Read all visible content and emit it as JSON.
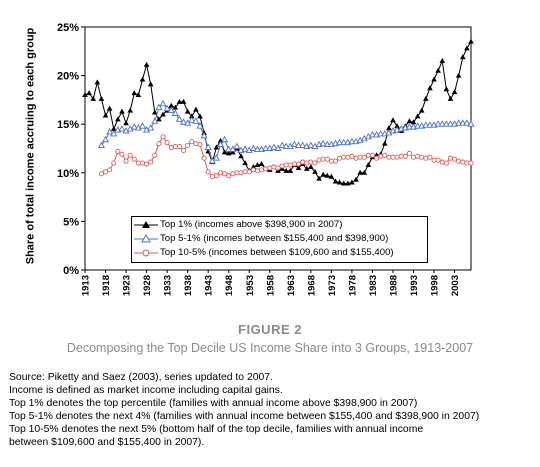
{
  "chart_data": {
    "type": "line",
    "ylabel": "Share of total income accruing to each group",
    "ylim": [
      0,
      25
    ],
    "yticks": [
      "0%",
      "5%",
      "10%",
      "15%",
      "20%",
      "25%"
    ],
    "xticks": [
      "1913",
      "1918",
      "1923",
      "1928",
      "1933",
      "1938",
      "1943",
      "1948",
      "1953",
      "1958",
      "1963",
      "1968",
      "1973",
      "1978",
      "1983",
      "1988",
      "1993",
      "1998",
      "2003"
    ],
    "xlim": [
      1913,
      2007
    ],
    "grid": "vertical dashed",
    "legend_position": "bottom-center",
    "series": [
      {
        "name": "Top 1% (incomes above $398,900 in 2007)",
        "color": "#000000",
        "marker": "filled-triangle",
        "x": [
          1913,
          1914,
          1915,
          1916,
          1917,
          1918,
          1919,
          1920,
          1921,
          1922,
          1923,
          1924,
          1925,
          1926,
          1927,
          1928,
          1929,
          1930,
          1931,
          1932,
          1933,
          1934,
          1935,
          1936,
          1937,
          1938,
          1939,
          1940,
          1941,
          1942,
          1943,
          1944,
          1945,
          1946,
          1947,
          1948,
          1949,
          1950,
          1951,
          1952,
          1953,
          1954,
          1955,
          1956,
          1957,
          1958,
          1959,
          1960,
          1961,
          1962,
          1963,
          1964,
          1965,
          1966,
          1967,
          1968,
          1969,
          1970,
          1971,
          1972,
          1973,
          1974,
          1975,
          1976,
          1977,
          1978,
          1979,
          1980,
          1981,
          1982,
          1983,
          1984,
          1985,
          1986,
          1987,
          1988,
          1989,
          1990,
          1991,
          1992,
          1993,
          1994,
          1995,
          1996,
          1997,
          1998,
          1999,
          2000,
          2001,
          2002,
          2003,
          2004,
          2005,
          2006,
          2007
        ],
        "values": [
          18.0,
          18.2,
          17.6,
          19.3,
          17.6,
          15.9,
          16.6,
          14.5,
          15.5,
          16.3,
          15.1,
          16.4,
          18.2,
          18.0,
          19.6,
          21.1,
          19.1,
          16.2,
          15.5,
          16.0,
          16.4,
          16.9,
          16.7,
          17.3,
          17.3,
          16.3,
          15.8,
          16.5,
          15.8,
          14.1,
          12.2,
          11.1,
          12.6,
          13.3,
          12.1,
          12.0,
          12.1,
          12.5,
          11.7,
          11.0,
          10.2,
          10.6,
          10.8,
          10.9,
          10.4,
          10.3,
          10.6,
          10.2,
          10.4,
          10.2,
          10.2,
          10.8,
          10.5,
          10.9,
          10.4,
          10.6,
          10.1,
          9.4,
          9.8,
          9.7,
          9.6,
          9.1,
          9.0,
          8.9,
          8.9,
          9.0,
          9.3,
          10.0,
          10.0,
          10.8,
          11.6,
          11.8,
          11.9,
          13.0,
          14.6,
          15.4,
          14.8,
          14.3,
          14.8,
          15.3,
          15.2,
          15.8,
          16.4,
          17.6,
          18.7,
          19.6,
          20.5,
          21.5,
          18.6,
          17.6,
          18.3,
          20.0,
          21.9,
          22.8,
          23.5
        ]
      },
      {
        "name": "Top 5-1% (incomes between $155,400 and $398,900)",
        "color": "#4f6fcf",
        "marker": "open-triangle",
        "x": [
          1913,
          1914,
          1915,
          1916,
          1917,
          1918,
          1919,
          1920,
          1921,
          1922,
          1923,
          1924,
          1925,
          1926,
          1927,
          1928,
          1929,
          1930,
          1931,
          1932,
          1933,
          1934,
          1935,
          1936,
          1937,
          1938,
          1939,
          1940,
          1941,
          1942,
          1943,
          1944,
          1945,
          1946,
          1947,
          1948,
          1949,
          1950,
          1951,
          1952,
          1953,
          1954,
          1955,
          1956,
          1957,
          1958,
          1959,
          1960,
          1961,
          1962,
          1963,
          1964,
          1965,
          1966,
          1967,
          1968,
          1969,
          1970,
          1971,
          1972,
          1973,
          1974,
          1975,
          1976,
          1977,
          1978,
          1979,
          1980,
          1981,
          1982,
          1983,
          1984,
          1985,
          1986,
          1987,
          1988,
          1989,
          1990,
          1991,
          1992,
          1993,
          1994,
          1995,
          1996,
          1997,
          1998,
          1999,
          2000,
          2001,
          2002,
          2003,
          2004,
          2005,
          2006,
          2007
        ],
        "values": [
          null,
          null,
          null,
          null,
          12.8,
          13.4,
          14.2,
          14.0,
          14.4,
          14.5,
          14.3,
          14.5,
          14.7,
          14.6,
          14.8,
          14.4,
          14.6,
          15.3,
          16.7,
          17.1,
          16.6,
          16.4,
          16.1,
          15.5,
          15.2,
          15.1,
          15.4,
          15.3,
          14.8,
          13.8,
          12.6,
          11.2,
          11.5,
          12.9,
          13.4,
          12.4,
          12.4,
          12.7,
          12.3,
          12.4,
          12.3,
          12.5,
          12.4,
          12.4,
          12.5,
          12.5,
          12.6,
          12.5,
          12.8,
          12.7,
          12.7,
          12.9,
          12.8,
          12.8,
          12.7,
          12.8,
          12.7,
          12.9,
          13.0,
          12.9,
          12.9,
          13.0,
          13.1,
          13.1,
          13.1,
          13.2,
          13.2,
          13.3,
          13.5,
          13.7,
          13.9,
          13.9,
          14.0,
          14.0,
          14.1,
          14.3,
          14.4,
          14.5,
          14.6,
          14.7,
          14.7,
          14.8,
          14.8,
          14.9,
          14.9,
          14.9,
          15.0,
          15.0,
          15.0,
          15.0,
          15.0,
          15.1,
          15.1,
          15.1,
          15.0
        ]
      },
      {
        "name": "Top 10-5% (incomes between $109,600 and $155,400)",
        "color": "#e05a5a",
        "marker": "open-circle",
        "x": [
          1913,
          1914,
          1915,
          1916,
          1917,
          1918,
          1919,
          1920,
          1921,
          1922,
          1923,
          1924,
          1925,
          1926,
          1927,
          1928,
          1929,
          1930,
          1931,
          1932,
          1933,
          1934,
          1935,
          1936,
          1937,
          1938,
          1939,
          1940,
          1941,
          1942,
          1943,
          1944,
          1945,
          1946,
          1947,
          1948,
          1949,
          1950,
          1951,
          1952,
          1953,
          1954,
          1955,
          1956,
          1957,
          1958,
          1959,
          1960,
          1961,
          1962,
          1963,
          1964,
          1965,
          1966,
          1967,
          1968,
          1969,
          1970,
          1971,
          1972,
          1973,
          1974,
          1975,
          1976,
          1977,
          1978,
          1979,
          1980,
          1981,
          1982,
          1983,
          1984,
          1985,
          1986,
          1987,
          1988,
          1989,
          1990,
          1991,
          1992,
          1993,
          1994,
          1995,
          1996,
          1997,
          1998,
          1999,
          2000,
          2001,
          2002,
          2003,
          2004,
          2005,
          2006,
          2007
        ],
        "values": [
          null,
          null,
          null,
          null,
          9.9,
          10.1,
          10.3,
          11.0,
          12.2,
          11.9,
          11.2,
          11.8,
          11.4,
          11.0,
          11.0,
          10.9,
          11.1,
          11.8,
          13.0,
          13.7,
          13.1,
          12.6,
          12.7,
          12.7,
          12.3,
          12.8,
          13.2,
          13.0,
          12.9,
          11.5,
          10.1,
          9.6,
          9.7,
          10.0,
          9.9,
          9.7,
          9.9,
          10.0,
          10.0,
          10.1,
          10.1,
          10.3,
          10.2,
          10.3,
          10.4,
          10.5,
          10.6,
          10.5,
          10.7,
          10.8,
          10.8,
          10.9,
          10.9,
          11.1,
          11.0,
          11.1,
          11.0,
          11.3,
          11.4,
          11.4,
          11.2,
          11.2,
          11.5,
          11.6,
          11.6,
          11.7,
          11.5,
          11.6,
          11.6,
          11.8,
          11.8,
          11.5,
          11.7,
          11.8,
          11.6,
          11.6,
          11.6,
          11.7,
          11.7,
          12.0,
          11.6,
          11.7,
          11.6,
          11.5,
          11.6,
          11.3,
          11.3,
          11.1,
          11.0,
          11.5,
          11.4,
          11.2,
          11.1,
          11.0,
          11.0
        ]
      }
    ]
  },
  "figure": {
    "label": "FIGURE 2",
    "caption": "Decomposing the Top Decile US Income Share into 3 Groups, 1913-2007"
  },
  "notes": [
    "Source: Piketty and Saez (2003), series updated to 2007.",
    "Income is defined as market income including capital gains.",
    "Top 1% denotes the top percentile (families with annual income above $398,900 in 2007)",
    "Top 5-1% denotes the next 4% (families with annual income between $155,400 and $398,900 in 2007)",
    "Top 10-5% denotes the next 5% (bottom half of the top decile, families with annual income",
    "between $109,600 and $155,400 in 2007)."
  ]
}
